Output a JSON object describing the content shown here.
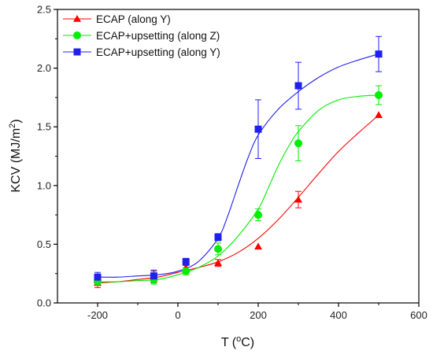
{
  "chart_data": {
    "type": "scatter",
    "xlabel": {
      "main": "T (",
      "sup": "o",
      "tail": "C)"
    },
    "ylabel": {
      "main": "KCV (MJ/m",
      "sup": "2",
      "tail": ")"
    },
    "xlim": [
      -300,
      600
    ],
    "ylim": [
      0,
      2.5
    ],
    "xticks": [
      -200,
      0,
      200,
      400,
      600
    ],
    "yticks": [
      0.0,
      0.5,
      1.0,
      1.5,
      2.0,
      2.5
    ],
    "xtick_labels": [
      "-200",
      "0",
      "200",
      "400",
      "600"
    ],
    "ytick_labels": [
      "0.0",
      "0.5",
      "1.0",
      "1.5",
      "2.0",
      "2.5"
    ],
    "grid": false,
    "legend_position": "top-left",
    "series": [
      {
        "name": "ECAP (along Y)",
        "color": "#ff0000",
        "marker": "triangle",
        "x": [
          -200,
          -60,
          20,
          100,
          200,
          300,
          500
        ],
        "y": [
          0.17,
          0.22,
          0.3,
          0.34,
          0.48,
          0.88,
          1.6
        ],
        "err": [
          0.04,
          0.05,
          0.02,
          0.03,
          0.0,
          0.07,
          0.0
        ],
        "fit_x": [
          -200,
          -150,
          -100,
          -50,
          0,
          50,
          100,
          150,
          200,
          250,
          300,
          350,
          400,
          450,
          500
        ],
        "fit_y": [
          0.17,
          0.18,
          0.2,
          0.22,
          0.26,
          0.3,
          0.35,
          0.43,
          0.55,
          0.71,
          0.9,
          1.1,
          1.29,
          1.45,
          1.6
        ]
      },
      {
        "name": "ECAP+upsetting (along Z)",
        "color": "#00ee00",
        "marker": "circle",
        "x": [
          -200,
          -60,
          20,
          100,
          200,
          300,
          500
        ],
        "y": [
          0.18,
          0.2,
          0.27,
          0.46,
          0.75,
          1.36,
          1.77
        ],
        "err": [
          0.03,
          0.04,
          0.03,
          0.05,
          0.05,
          0.15,
          0.08
        ],
        "fit_x": [
          -200,
          -150,
          -100,
          -50,
          0,
          50,
          100,
          150,
          200,
          225,
          250,
          275,
          300,
          350,
          400,
          450,
          500
        ],
        "fit_y": [
          0.18,
          0.18,
          0.19,
          0.2,
          0.24,
          0.3,
          0.4,
          0.57,
          0.8,
          0.98,
          1.17,
          1.33,
          1.46,
          1.64,
          1.73,
          1.76,
          1.77
        ]
      },
      {
        "name": "ECAP+upsetting (along Y)",
        "color": "#2020ee",
        "marker": "square",
        "x": [
          -200,
          -60,
          20,
          100,
          200,
          300,
          500
        ],
        "y": [
          0.22,
          0.23,
          0.35,
          0.56,
          1.48,
          1.85,
          2.12
        ],
        "err": [
          0.04,
          0.05,
          0.03,
          0.03,
          0.25,
          0.2,
          0.15
        ],
        "fit_x": [
          -200,
          -150,
          -100,
          -50,
          0,
          50,
          100,
          125,
          150,
          175,
          200,
          250,
          300,
          350,
          400,
          450,
          500
        ],
        "fit_y": [
          0.22,
          0.22,
          0.23,
          0.24,
          0.27,
          0.35,
          0.55,
          0.75,
          1.0,
          1.24,
          1.43,
          1.65,
          1.8,
          1.92,
          2.01,
          2.07,
          2.12
        ]
      }
    ]
  }
}
